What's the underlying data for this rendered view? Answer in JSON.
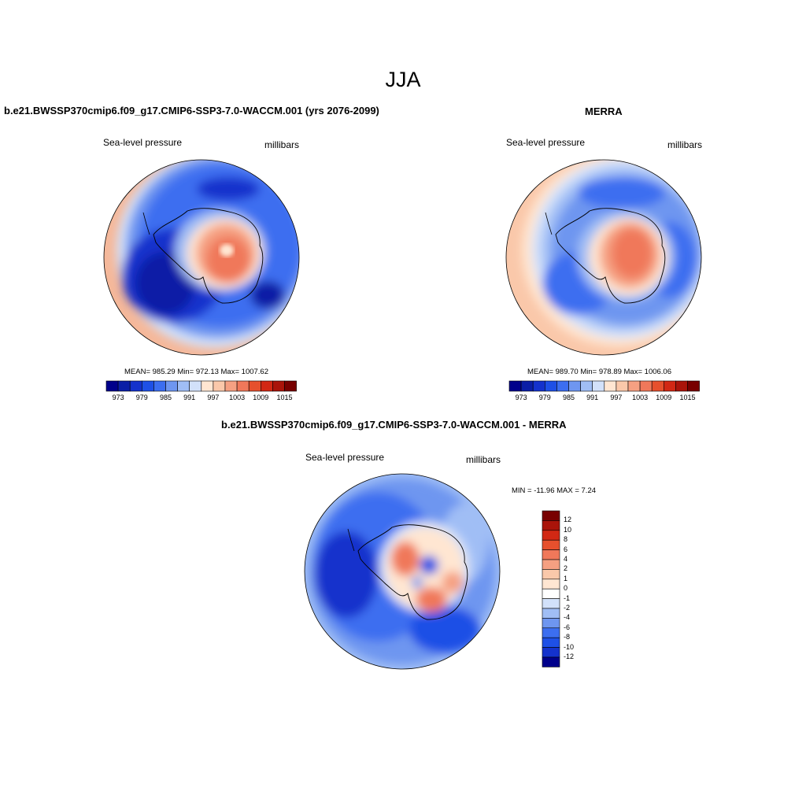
{
  "title": "JJA",
  "panels": {
    "left": {
      "title": "b.e21.BWSSP370cmip6.f09_g17.CMIP6-SSP3-7.0-WACCM.001 (yrs 2076-2099)",
      "variable": "Sea-level pressure",
      "units": "millibars",
      "stats": "MEAN= 985.29  Min= 972.13  Max= 1007.62"
    },
    "right": {
      "title": "MERRA",
      "variable": "Sea-level pressure",
      "units": "millibars",
      "stats": "MEAN= 989.70  Min= 978.89  Max= 1006.06"
    },
    "diff": {
      "title": "b.e21.BWSSP370cmip6.f09_g17.CMIP6-SSP3-7.0-WACCM.001 - MERRA",
      "variable": "Sea-level pressure",
      "units": "millibars",
      "stats": "MIN = -11.96 MAX =   7.24"
    }
  },
  "colorbar_abs": {
    "labels": [
      "973",
      "979",
      "985",
      "991",
      "997",
      "1003",
      "1009",
      "1015"
    ],
    "colors": [
      "#00008b",
      "#0a1ea6",
      "#1432cc",
      "#1e50e6",
      "#3c6ef0",
      "#6e96f0",
      "#a0bef5",
      "#d2e1fa",
      "#ffe6d2",
      "#fac8aa",
      "#f5a082",
      "#f0785a",
      "#e6502d",
      "#d22814",
      "#aa140a",
      "#780000"
    ]
  },
  "colorbar_diff": {
    "labels": [
      "12",
      "10",
      "8",
      "6",
      "4",
      "2",
      "1",
      "0",
      "-1",
      "-2",
      "-4",
      "-6",
      "-8",
      "-10",
      "-12"
    ],
    "colors": [
      "#780000",
      "#aa140a",
      "#d22814",
      "#e6502d",
      "#f0785a",
      "#f5a082",
      "#fac8aa",
      "#ffe6d2",
      "#ffffff",
      "#d2e1fa",
      "#a0bef5",
      "#6e96f0",
      "#3c6ef0",
      "#1e50e6",
      "#1432cc",
      "#00008b"
    ]
  }
}
